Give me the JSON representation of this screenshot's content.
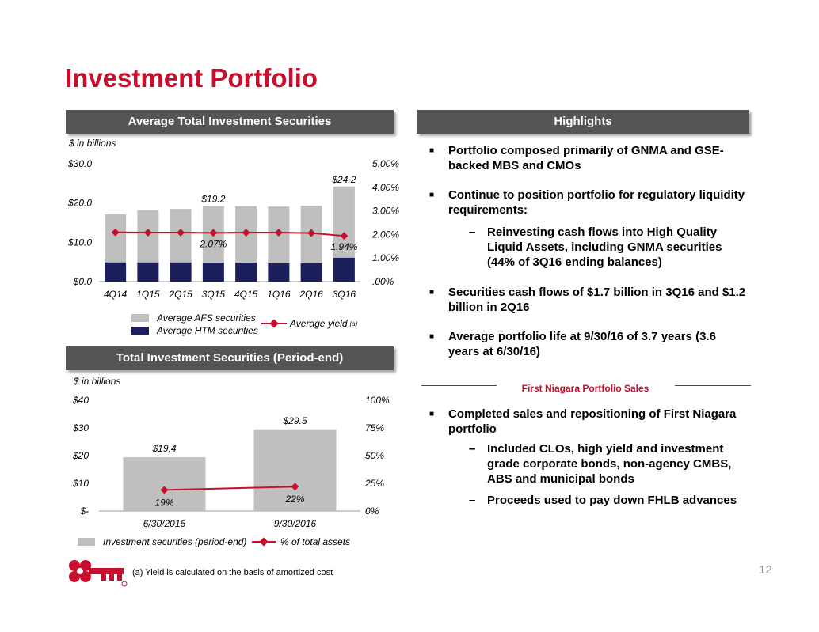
{
  "page": {
    "title": "Investment Portfolio",
    "page_number": "12",
    "footnote": "(a)  Yield is calculated on the basis of amortized cost",
    "colors": {
      "brand_red": "#c8102e",
      "banner_gray": "#555555",
      "afs_gray": "#bfbfbf",
      "htm_navy": "#1b1f5c"
    }
  },
  "left": {
    "chart1_header": "Average Total Investment Securities",
    "chart1_unit": "$ in billions",
    "chart2_header": "Total Investment Securities (Period-end)",
    "chart2_unit": "$ in billions",
    "legend1": {
      "afs": "Average AFS securities",
      "htm": "Average HTM securities",
      "yield": "Average yield",
      "yield_note": "(a)"
    },
    "legend2": {
      "bars": "Investment securities (period-end)",
      "line": "% of total assets"
    }
  },
  "right": {
    "header": "Highlights",
    "bullets": [
      "Portfolio composed primarily of GNMA and GSE-backed MBS and CMOs",
      "Continue to position portfolio for regulatory liquidity requirements:",
      "Securities cash flows of $1.7 billion in 3Q16 and $1.2 billion in 2Q16",
      "Average portfolio life at 9/30/16 of 3.7 years (3.6 years at 6/30/16)"
    ],
    "sub_bullets": [
      "Reinvesting cash flows into High Quality Liquid Assets, including GNMA securities (44% of 3Q16 ending balances)"
    ],
    "section2_header": "First Niagara Portfolio Sales",
    "section2_bullets": [
      "Completed sales and repositioning of First Niagara portfolio"
    ],
    "section2_sub": [
      "Included CLOs, high yield and investment grade corporate bonds, non-agency CMBS, ABS and municipal bonds",
      "Proceeds used to pay down FHLB advances"
    ]
  },
  "chart_data": [
    {
      "type": "bar",
      "stacked": true,
      "categories": [
        "4Q14",
        "1Q15",
        "2Q15",
        "3Q15",
        "4Q15",
        "1Q16",
        "2Q16",
        "3Q16"
      ],
      "series": [
        {
          "name": "Average HTM securities",
          "values": [
            4.9,
            4.9,
            4.9,
            4.8,
            4.8,
            4.7,
            4.7,
            6.1
          ],
          "color": "#1b1f5c"
        },
        {
          "name": "Average AFS securities",
          "values": [
            12.2,
            13.3,
            13.6,
            14.4,
            14.4,
            14.4,
            14.6,
            18.1
          ],
          "color": "#bfbfbf"
        },
        {
          "name": "Average yield",
          "axis": "right",
          "type": "line",
          "values": [
            2.09,
            2.08,
            2.08,
            2.07,
            2.08,
            2.08,
            2.06,
            1.94
          ],
          "color": "#c8102e"
        }
      ],
      "bar_total_labels": [
        {
          "index": 3,
          "text": "$19.2"
        },
        {
          "index": 7,
          "text": "$24.2"
        }
      ],
      "line_labels": [
        {
          "index": 3,
          "text": "2.07%"
        },
        {
          "index": 7,
          "text": "1.94%"
        }
      ],
      "ylim": [
        0,
        30
      ],
      "yticks": [
        "$0.0",
        "$10.0",
        "$20.0",
        "$30.0"
      ],
      "y2lim": [
        0,
        5
      ],
      "y2ticks": [
        ".00%",
        "1.00%",
        "2.00%",
        "3.00%",
        "4.00%",
        "5.00%"
      ]
    },
    {
      "type": "bar",
      "categories": [
        "6/30/2016",
        "9/30/2016"
      ],
      "series": [
        {
          "name": "Investment securities (period-end)",
          "values": [
            19.4,
            29.5
          ],
          "color": "#bfbfbf"
        },
        {
          "name": "% of total assets",
          "axis": "right",
          "type": "line",
          "values": [
            19,
            22
          ],
          "color": "#c8102e"
        }
      ],
      "bar_labels": [
        "$19.4",
        "$29.5"
      ],
      "line_labels": [
        "19%",
        "22%"
      ],
      "ylim": [
        0,
        40
      ],
      "yticks": [
        "$-",
        "$10",
        "$20",
        "$30",
        "$40"
      ],
      "y2lim": [
        0,
        100
      ],
      "y2ticks": [
        "0%",
        "25%",
        "50%",
        "75%",
        "100%"
      ]
    }
  ]
}
